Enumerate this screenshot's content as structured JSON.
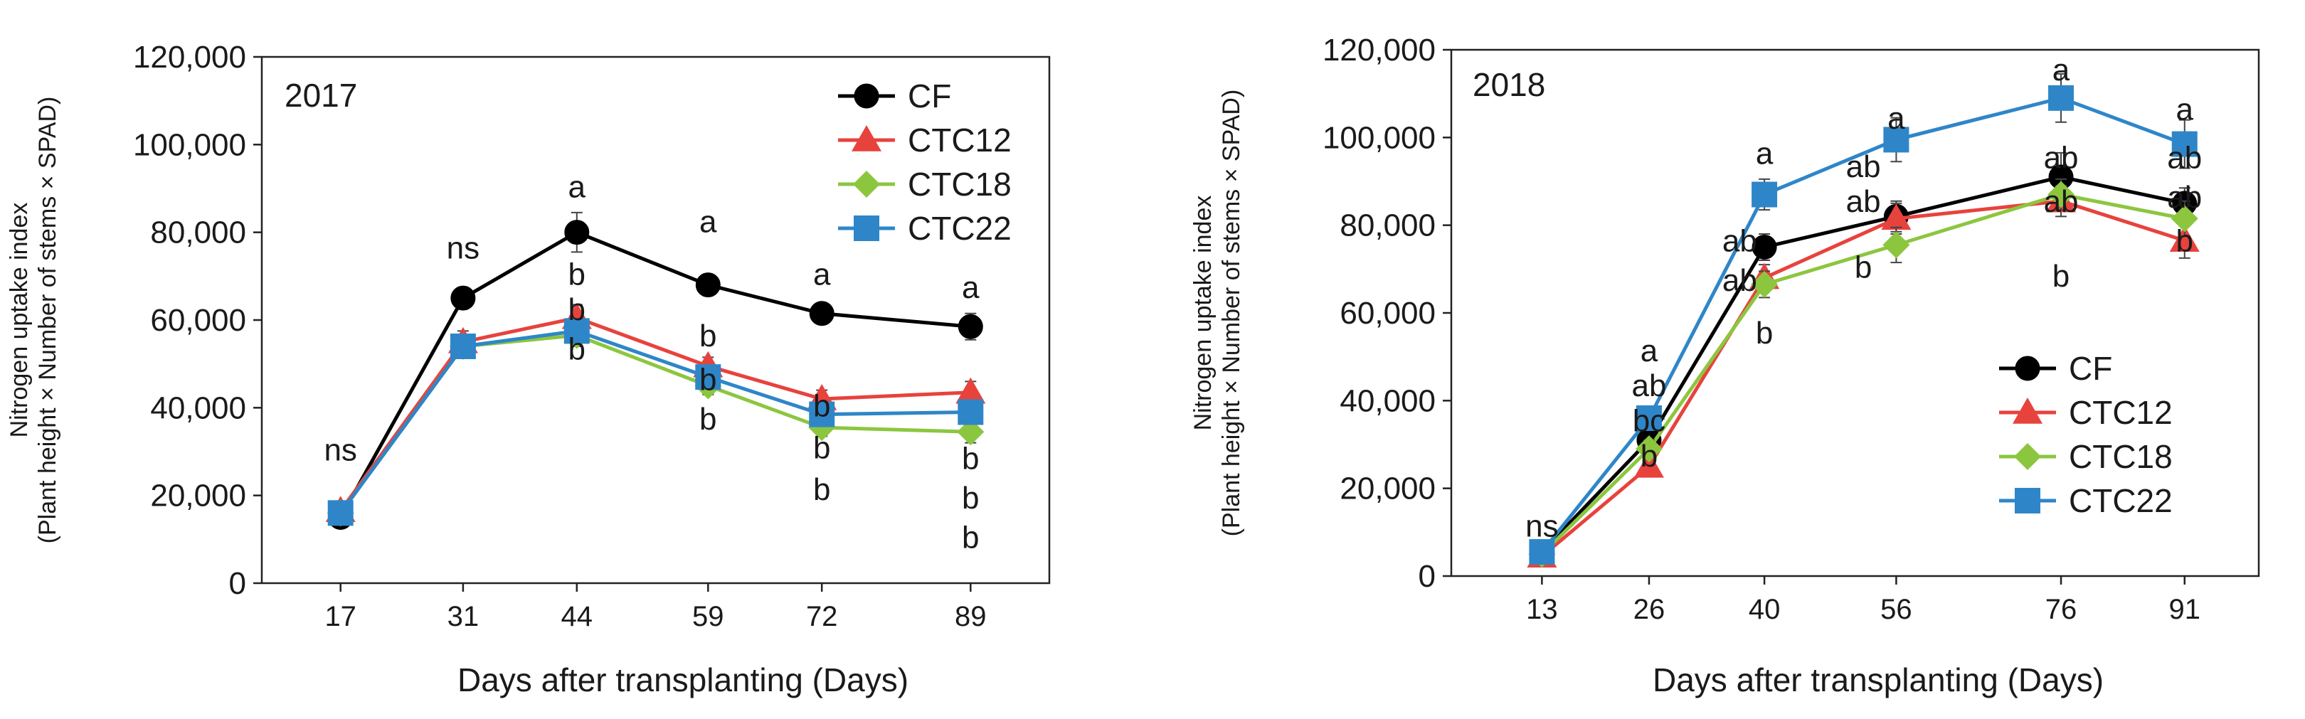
{
  "chart_data": [
    {
      "type": "line",
      "title": "2017",
      "xlabel": "Days after transplanting (Days)",
      "ylabel_line1": "Nitrogen uptake index",
      "ylabel_line2": "(Plant height × Number of stems × SPAD)",
      "ylim": [
        0,
        120000
      ],
      "yticks": [
        {
          "value": 0,
          "label": "0"
        },
        {
          "value": 20000,
          "label": "20,000"
        },
        {
          "value": 40000,
          "label": "40,000"
        },
        {
          "value": 60000,
          "label": "60,000"
        },
        {
          "value": 80000,
          "label": "80,000"
        },
        {
          "value": 100000,
          "label": "100,000"
        },
        {
          "value": 120000,
          "label": "120,000"
        }
      ],
      "xlim": [
        8,
        98
      ],
      "x": [
        17,
        31,
        44,
        59,
        72,
        89
      ],
      "xtick_labels": [
        "17",
        "31",
        "44",
        "59",
        "72",
        "89"
      ],
      "legend_position": "top-right",
      "series": [
        {
          "name": "CF",
          "color": "#000000",
          "marker": "circle",
          "values": [
            15000,
            65000,
            80000,
            68000,
            61500,
            58500
          ],
          "errors": [
            1000,
            1500,
            4500,
            1500,
            2000,
            3000
          ]
        },
        {
          "name": "CTC12",
          "color": "#E8423D",
          "marker": "triangle",
          "values": [
            16500,
            55000,
            60500,
            49500,
            42000,
            43500
          ],
          "errors": [
            1000,
            2500,
            3000,
            2000,
            2000,
            2500
          ]
        },
        {
          "name": "CTC18",
          "color": "#8CC63F",
          "marker": "diamond",
          "values": [
            16000,
            54000,
            56500,
            45000,
            35500,
            34500
          ],
          "errors": [
            1000,
            2500,
            2500,
            2000,
            2000,
            2500
          ]
        },
        {
          "name": "CTC22",
          "color": "#2E86C8",
          "marker": "square",
          "values": [
            16000,
            54000,
            57500,
            47000,
            38500,
            39000
          ],
          "errors": [
            1000,
            2000,
            2500,
            2000,
            2000,
            2500
          ]
        }
      ],
      "annotations": [
        {
          "x": 17,
          "y": 28000,
          "text": "ns"
        },
        {
          "x": 31,
          "y": 74000,
          "text": "ns"
        },
        {
          "x": 44,
          "y": 88000,
          "text": "a"
        },
        {
          "x": 44,
          "y": 68000,
          "text": "b"
        },
        {
          "x": 44,
          "y": 60000,
          "text": "b"
        },
        {
          "x": 44,
          "y": 51000,
          "text": "b"
        },
        {
          "x": 59,
          "y": 80000,
          "text": "a"
        },
        {
          "x": 59,
          "y": 54000,
          "text": "b"
        },
        {
          "x": 59,
          "y": 44000,
          "text": "b"
        },
        {
          "x": 59,
          "y": 35000,
          "text": "b"
        },
        {
          "x": 72,
          "y": 68000,
          "text": "a"
        },
        {
          "x": 72,
          "y": 38000,
          "text": "b"
        },
        {
          "x": 72,
          "y": 28500,
          "text": "b"
        },
        {
          "x": 72,
          "y": 19000,
          "text": "b"
        },
        {
          "x": 89,
          "y": 65000,
          "text": "a"
        },
        {
          "x": 89,
          "y": 26000,
          "text": "b"
        },
        {
          "x": 89,
          "y": 17000,
          "text": "b"
        },
        {
          "x": 89,
          "y": 8000,
          "text": "b"
        }
      ]
    },
    {
      "type": "line",
      "title": "2018",
      "xlabel": "Days after transplanting (Days)",
      "ylabel_line1": "Nitrogen uptake index",
      "ylabel_line2": "(Plant height × Number of stems × SPAD)",
      "ylim": [
        0,
        120000
      ],
      "yticks": [
        {
          "value": 0,
          "label": "0"
        },
        {
          "value": 20000,
          "label": "20,000"
        },
        {
          "value": 40000,
          "label": "40,000"
        },
        {
          "value": 60000,
          "label": "60,000"
        },
        {
          "value": 80000,
          "label": "80,000"
        },
        {
          "value": 100000,
          "label": "100,000"
        },
        {
          "value": 120000,
          "label": "120,000"
        }
      ],
      "xlim": [
        2,
        100
      ],
      "x": [
        13,
        26,
        40,
        56,
        76,
        91
      ],
      "xtick_labels": [
        "13",
        "26",
        "40",
        "56",
        "76",
        "91"
      ],
      "legend_position": "bottom-right",
      "series": [
        {
          "name": "CF",
          "color": "#000000",
          "marker": "circle",
          "values": [
            5500,
            31000,
            75000,
            82000,
            91000,
            85000
          ],
          "errors": [
            800,
            2000,
            3000,
            3500,
            5500,
            3500
          ]
        },
        {
          "name": "CTC12",
          "color": "#E8423D",
          "marker": "triangle",
          "values": [
            4500,
            25000,
            68000,
            81500,
            85500,
            76500
          ],
          "errors": [
            800,
            2000,
            3000,
            3500,
            3500,
            4000
          ]
        },
        {
          "name": "CTC18",
          "color": "#8CC63F",
          "marker": "diamond",
          "values": [
            5000,
            29000,
            66500,
            75500,
            87000,
            81500
          ],
          "errors": [
            800,
            2000,
            3000,
            4000,
            3500,
            4000
          ]
        },
        {
          "name": "CTC22",
          "color": "#2E86C8",
          "marker": "square",
          "values": [
            5500,
            36000,
            87000,
            99500,
            109000,
            98500
          ],
          "errors": [
            800,
            2500,
            3500,
            5000,
            5500,
            5500
          ]
        }
      ],
      "annotations": [
        {
          "x": 13,
          "y": 9000,
          "text": "ns"
        },
        {
          "x": 26,
          "y": 49000,
          "text": "a"
        },
        {
          "x": 26,
          "y": 41000,
          "text": "ab"
        },
        {
          "x": 26,
          "y": 33000,
          "text": "bc"
        },
        {
          "x": 26,
          "y": 25000,
          "text": "b"
        },
        {
          "x": 40,
          "y": 94000,
          "text": "a"
        },
        {
          "x": 37,
          "y": 74000,
          "text": "ab"
        },
        {
          "x": 37,
          "y": 65000,
          "text": "ab"
        },
        {
          "x": 40,
          "y": 53000,
          "text": "b"
        },
        {
          "x": 56,
          "y": 102000,
          "text": "a"
        },
        {
          "x": 52,
          "y": 91000,
          "text": "ab"
        },
        {
          "x": 52,
          "y": 83000,
          "text": "ab"
        },
        {
          "x": 52,
          "y": 68000,
          "text": "b"
        },
        {
          "x": 76,
          "y": 113000,
          "text": "a"
        },
        {
          "x": 76,
          "y": 93000,
          "text": "ab"
        },
        {
          "x": 76,
          "y": 83000,
          "text": "ab"
        },
        {
          "x": 76,
          "y": 66000,
          "text": "b"
        },
        {
          "x": 91,
          "y": 104000,
          "text": "a"
        },
        {
          "x": 91,
          "y": 93000,
          "text": "ab"
        },
        {
          "x": 91,
          "y": 84000,
          "text": "ab"
        },
        {
          "x": 91,
          "y": 74000,
          "text": "b"
        }
      ]
    }
  ]
}
